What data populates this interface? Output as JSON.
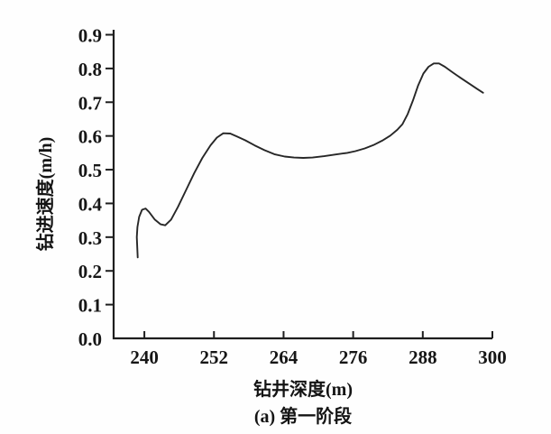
{
  "chart_data": {
    "type": "line",
    "title": "",
    "xlabel": "钻井深度(m)",
    "ylabel": "钻进速度(m/h)",
    "caption": "(a) 第一阶段",
    "xlim": [
      234.7,
      300
    ],
    "ylim": [
      0,
      0.9
    ],
    "x_ticks": [
      "240",
      "252",
      "264",
      "276",
      "288",
      "300"
    ],
    "y_ticks": [
      "0.0",
      "0.1",
      "0.2",
      "0.3",
      "0.4",
      "0.5",
      "0.6",
      "0.7",
      "0.8",
      "0.9"
    ],
    "grid": false,
    "legend": "none",
    "axis_color": "#1e1e1e",
    "line_color": "#272727",
    "text_color": "#161616",
    "series": [
      {
        "points": [
          [
            238.85,
            0.24
          ],
          [
            238.7,
            0.3
          ],
          [
            238.8,
            0.33
          ],
          [
            239.1,
            0.36
          ],
          [
            239.6,
            0.381
          ],
          [
            240.2,
            0.385
          ],
          [
            240.8,
            0.375
          ],
          [
            241.8,
            0.352
          ],
          [
            242.8,
            0.338
          ],
          [
            243.6,
            0.335
          ],
          [
            244.6,
            0.352
          ],
          [
            245.8,
            0.39
          ],
          [
            247.2,
            0.44
          ],
          [
            248.6,
            0.49
          ],
          [
            250.0,
            0.535
          ],
          [
            251.4,
            0.572
          ],
          [
            252.5,
            0.595
          ],
          [
            253.6,
            0.608
          ],
          [
            254.8,
            0.607
          ],
          [
            256.0,
            0.598
          ],
          [
            257.4,
            0.587
          ],
          [
            259.0,
            0.572
          ],
          [
            260.7,
            0.558
          ],
          [
            262.4,
            0.546
          ],
          [
            264.2,
            0.539
          ],
          [
            265.8,
            0.536
          ],
          [
            267.4,
            0.535
          ],
          [
            269.0,
            0.536
          ],
          [
            271.0,
            0.54
          ],
          [
            273.0,
            0.545
          ],
          [
            275.0,
            0.55
          ],
          [
            276.4,
            0.555
          ],
          [
            278.0,
            0.563
          ],
          [
            279.5,
            0.573
          ],
          [
            281.0,
            0.586
          ],
          [
            282.4,
            0.601
          ],
          [
            283.6,
            0.618
          ],
          [
            284.5,
            0.635
          ],
          [
            285.4,
            0.665
          ],
          [
            286.3,
            0.705
          ],
          [
            287.2,
            0.75
          ],
          [
            288.1,
            0.785
          ],
          [
            289.0,
            0.805
          ],
          [
            289.9,
            0.815
          ],
          [
            290.8,
            0.815
          ],
          [
            291.8,
            0.805
          ],
          [
            293.1,
            0.789
          ],
          [
            294.6,
            0.771
          ],
          [
            296.1,
            0.754
          ],
          [
            297.4,
            0.739
          ],
          [
            298.4,
            0.728
          ]
        ]
      }
    ]
  }
}
